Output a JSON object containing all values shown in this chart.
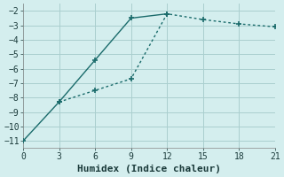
{
  "xlabel": "Humidex (Indice chaleur)",
  "background_color": "#d4eeee",
  "grid_color": "#aacfcf",
  "line_color": "#1a6b6b",
  "line1_x": [
    0,
    3,
    6,
    9,
    12
  ],
  "line1_y": [
    -11,
    -8.3,
    -5.4,
    -2.5,
    -2.2
  ],
  "line2_x": [
    3,
    6,
    9,
    12,
    15,
    18,
    21
  ],
  "line2_y": [
    -8.3,
    -7.5,
    -6.7,
    -2.2,
    -2.6,
    -2.9,
    -3.1
  ],
  "xlim": [
    0,
    21
  ],
  "ylim": [
    -11.5,
    -1.5
  ],
  "xticks": [
    0,
    3,
    6,
    9,
    12,
    15,
    18,
    21
  ],
  "yticks": [
    -11,
    -10,
    -9,
    -8,
    -7,
    -6,
    -5,
    -4,
    -3,
    -2
  ],
  "fontsize_label": 8,
  "fontsize_tick": 7
}
